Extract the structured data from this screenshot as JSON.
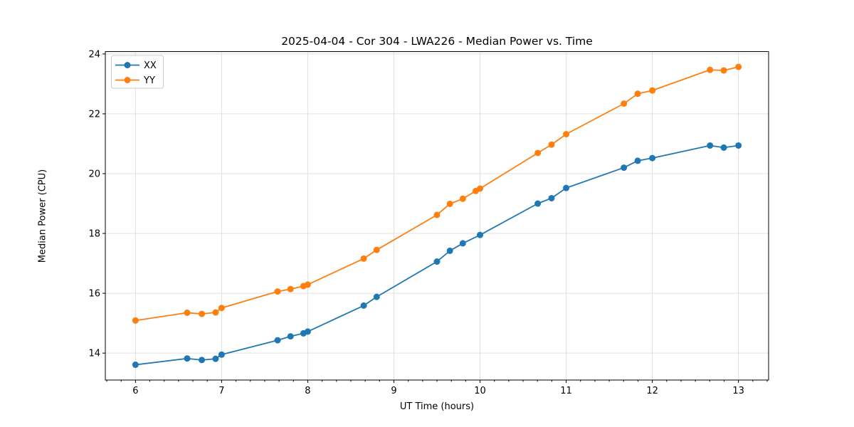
{
  "figure": {
    "title": "2025-04-04 - Cor 304 - LWA226 - Median Power vs. Time"
  },
  "chart_data": {
    "type": "line",
    "title": "2025-04-04 - Cor 304 - LWA226 - Median Power vs. Time",
    "xlabel": "UT Time (hours)",
    "ylabel": "Median Power (CPU)",
    "xlim": [
      5.65,
      13.35
    ],
    "ylim": [
      13.1,
      24.08
    ],
    "x_ticks": [
      6,
      7,
      8,
      9,
      10,
      11,
      12,
      13
    ],
    "y_ticks": [
      14,
      16,
      18,
      20,
      22,
      24
    ],
    "x_minor_tick_step": 0.1666667,
    "grid": true,
    "grid_color": "#e0e0e0",
    "axis_color": "#000000",
    "legend": {
      "position": "upper-left",
      "entries": [
        "XX",
        "YY"
      ]
    },
    "series": [
      {
        "name": "XX",
        "color": "#1f77b4",
        "marker": "o",
        "x": [
          6.0,
          6.6,
          6.77,
          6.93,
          7.0,
          7.65,
          7.8,
          7.95,
          8.0,
          8.65,
          8.8,
          9.5,
          9.65,
          9.8,
          10.0,
          10.67,
          10.83,
          11.0,
          11.67,
          11.83,
          12.0,
          12.67,
          12.83,
          13.0
        ],
        "y": [
          13.61,
          13.82,
          13.77,
          13.81,
          13.95,
          14.43,
          14.56,
          14.66,
          14.72,
          15.59,
          15.88,
          17.06,
          17.42,
          17.67,
          17.95,
          19.0,
          19.18,
          19.52,
          20.2,
          20.43,
          20.52,
          20.94,
          20.87,
          20.94
        ]
      },
      {
        "name": "YY",
        "color": "#ff7f0e",
        "marker": "o",
        "x": [
          6.0,
          6.6,
          6.77,
          6.93,
          7.0,
          7.65,
          7.8,
          7.95,
          8.0,
          8.65,
          8.8,
          9.5,
          9.65,
          9.8,
          9.95,
          10.0,
          10.67,
          10.83,
          11.0,
          11.67,
          11.83,
          12.0,
          12.67,
          12.83,
          13.0
        ],
        "y": [
          15.09,
          15.35,
          15.31,
          15.36,
          15.51,
          16.06,
          16.14,
          16.24,
          16.29,
          17.16,
          17.45,
          18.62,
          18.99,
          19.16,
          19.42,
          19.5,
          20.69,
          20.97,
          21.32,
          22.34,
          22.67,
          22.78,
          23.47,
          23.45,
          23.57
        ]
      }
    ]
  }
}
